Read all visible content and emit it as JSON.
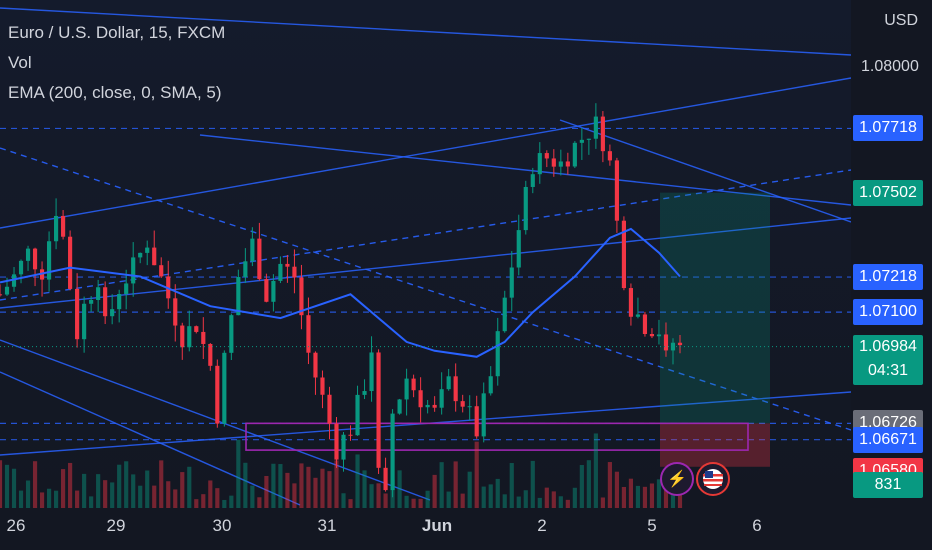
{
  "legend": {
    "symbol": "Euro / U.S. Dollar, 15, FXCM",
    "volume": "Vol",
    "ema": "EMA (200, close, 0, SMA, 5)"
  },
  "price_scale": {
    "currency": "USD",
    "ticks": [
      "1.08000"
    ],
    "labels": [
      {
        "name": "resistance-level-label",
        "value": "1.07718",
        "color": "#2962ff"
      },
      {
        "name": "take-profit-label",
        "value": "1.07502",
        "color": "#089981"
      },
      {
        "name": "ema-value-label",
        "value": "1.07218",
        "color": "#2962ff"
      },
      {
        "name": "trendline-level-label",
        "value": "1.07100",
        "color": "#2962ff"
      },
      {
        "name": "entry-level-label",
        "value": "1.06726",
        "color": "#6a6d78"
      },
      {
        "name": "support-level-label",
        "value": "1.06671",
        "color": "#2962ff"
      },
      {
        "name": "stop-loss-label",
        "value": "1.06580",
        "color": "#f23645"
      },
      {
        "name": "volume-value-label",
        "value": "831",
        "color": "#089981"
      }
    ],
    "current_price": {
      "value": "1.06984",
      "countdown": "04:31",
      "color": "#089981"
    }
  },
  "time_scale": {
    "ticks": [
      {
        "label": "26",
        "bold": false
      },
      {
        "label": "29",
        "bold": false
      },
      {
        "label": "30",
        "bold": false
      },
      {
        "label": "31",
        "bold": false
      },
      {
        "label": "Jun",
        "bold": true
      },
      {
        "label": "2",
        "bold": false
      },
      {
        "label": "5",
        "bold": false
      },
      {
        "label": "6",
        "bold": false
      }
    ]
  },
  "events": [
    {
      "name": "lightning-icon",
      "glyph": "⚡",
      "color": "#9c27b0"
    },
    {
      "name": "us-flag-icon",
      "glyph": "",
      "color": "#e53935"
    }
  ],
  "chart_data": {
    "type": "candlestick",
    "symbol": "Euro / U.S. Dollar, 15, FXCM",
    "ylim": [
      1.063,
      1.0815
    ],
    "last_price": 1.06984,
    "ema_period": 200,
    "colors": {
      "up": "#089981",
      "down": "#f23645",
      "ema": "#2962ff",
      "line": "#2962ff",
      "box": "#9c27b0"
    },
    "path": [
      [
        0,
        1.0716
      ],
      [
        2,
        1.0722
      ],
      [
        4,
        1.073
      ],
      [
        6,
        1.0724
      ],
      [
        8,
        1.0745
      ],
      [
        9,
        1.0735
      ],
      [
        11,
        1.0703
      ],
      [
        12,
        1.0712
      ],
      [
        14,
        1.0722
      ],
      [
        15,
        1.0705
      ],
      [
        17,
        1.0718
      ],
      [
        19,
        1.0725
      ],
      [
        21,
        1.0734
      ],
      [
        24,
        1.0715
      ],
      [
        26,
        1.0702
      ],
      [
        28,
        1.0706
      ],
      [
        30,
        1.0692
      ],
      [
        31,
        1.0676
      ],
      [
        32,
        1.0694
      ],
      [
        34,
        1.0722
      ],
      [
        36,
        1.0733
      ],
      [
        38,
        1.0716
      ],
      [
        40,
        1.0726
      ],
      [
        42,
        1.0722
      ],
      [
        44,
        1.0696
      ],
      [
        46,
        1.0681
      ],
      [
        48,
        1.0664
      ],
      [
        50,
        1.0671
      ],
      [
        52,
        1.0686
      ],
      [
        53,
        1.0698
      ],
      [
        54,
        1.0655
      ],
      [
        55,
        1.0647
      ],
      [
        56,
        1.0676
      ],
      [
        58,
        1.0688
      ],
      [
        60,
        1.0681
      ],
      [
        62,
        1.0676
      ],
      [
        64,
        1.0686
      ],
      [
        66,
        1.068
      ],
      [
        68,
        1.067
      ],
      [
        70,
        1.0688
      ],
      [
        72,
        1.0714
      ],
      [
        74,
        1.0738
      ],
      [
        76,
        1.076
      ],
      [
        78,
        1.0762
      ],
      [
        80,
        1.076
      ],
      [
        82,
        1.0766
      ],
      [
        84,
        1.0771
      ],
      [
        85,
        1.0773
      ],
      [
        86,
        1.0768
      ],
      [
        87,
        1.076
      ],
      [
        88,
        1.074
      ],
      [
        89,
        1.0722
      ],
      [
        90,
        1.0712
      ],
      [
        92,
        1.0706
      ],
      [
        94,
        1.0704
      ],
      [
        95,
        1.0694
      ],
      [
        96,
        1.07
      ],
      [
        97,
        1.0698
      ]
    ],
    "ema": [
      [
        0,
        1.072
      ],
      [
        10,
        1.0725
      ],
      [
        20,
        1.0722
      ],
      [
        30,
        1.0712
      ],
      [
        40,
        1.0708
      ],
      [
        50,
        1.0716
      ],
      [
        58,
        1.07
      ],
      [
        62,
        1.0697
      ],
      [
        68,
        1.0695
      ],
      [
        72,
        1.07
      ],
      [
        76,
        1.071
      ],
      [
        82,
        1.0722
      ],
      [
        87,
        1.0735
      ],
      [
        90,
        1.0738
      ],
      [
        94,
        1.073
      ],
      [
        97,
        1.0722
      ]
    ],
    "levels": [
      1.07718,
      1.07502,
      1.07218,
      1.071,
      1.06726,
      1.06671,
      1.0658
    ],
    "volume_last": 831
  }
}
